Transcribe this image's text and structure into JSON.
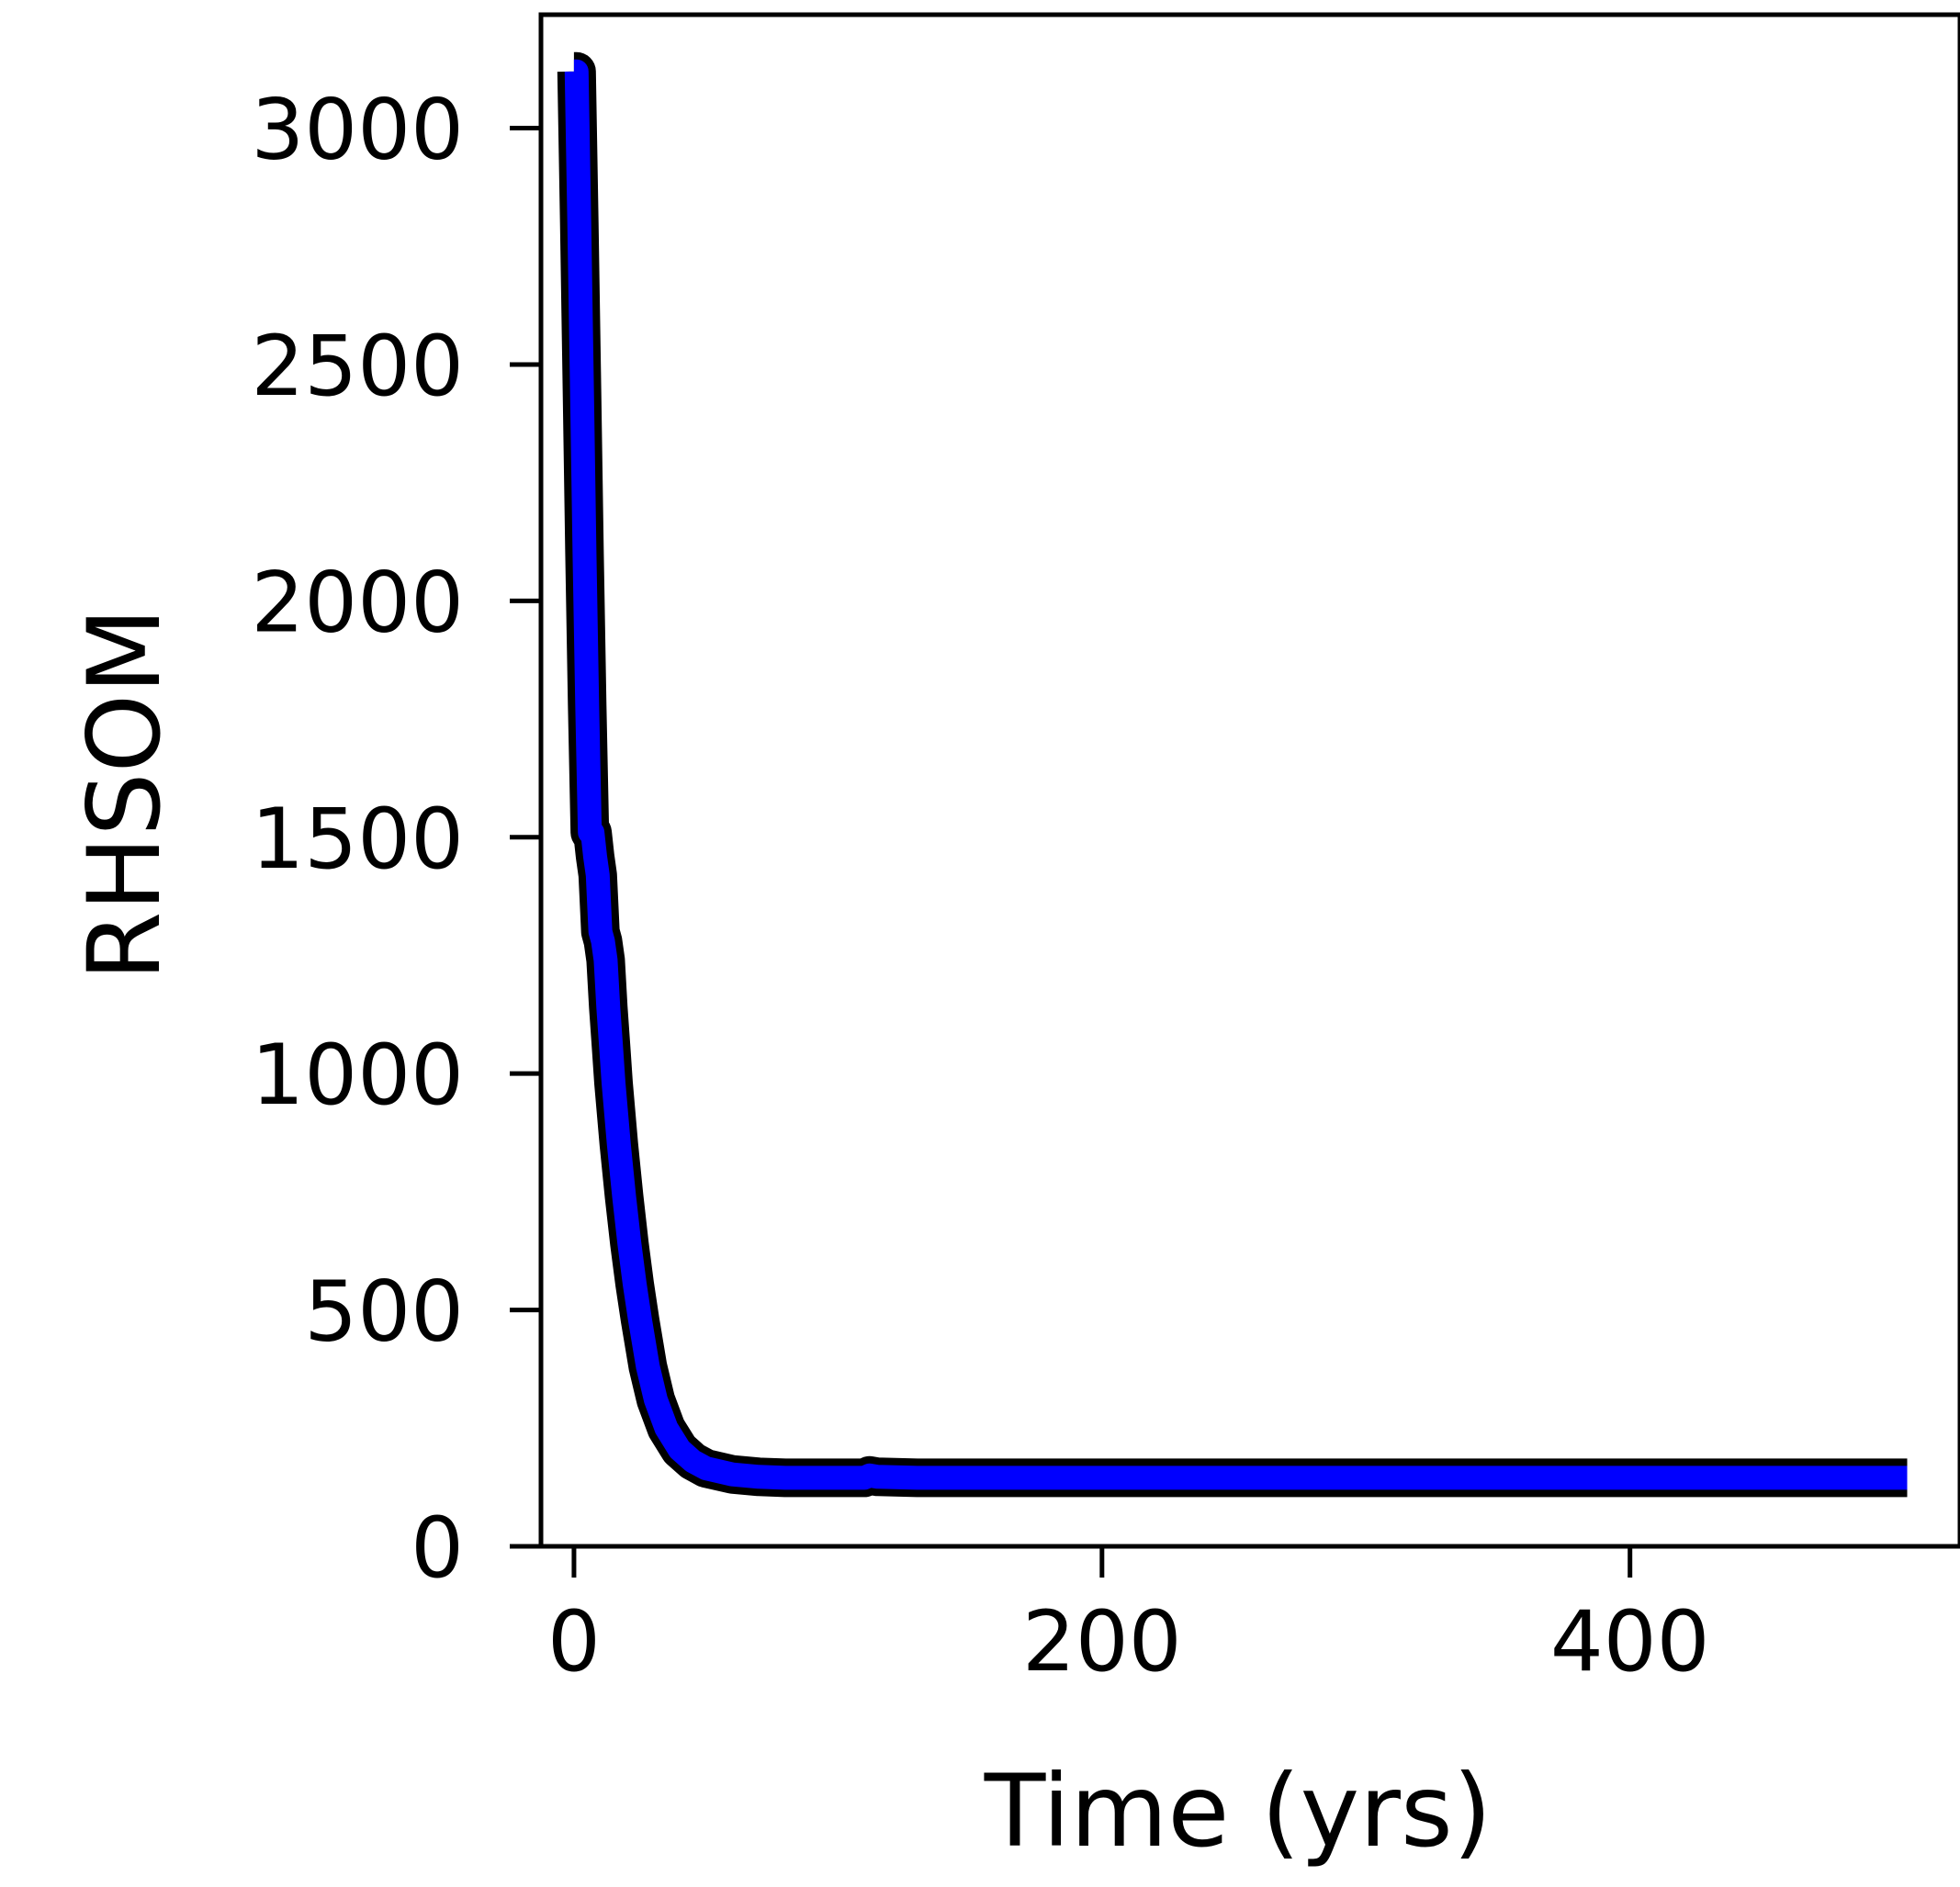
{
  "chart_data": {
    "type": "line",
    "title": "",
    "xlabel": "Time (yrs)",
    "ylabel": "RHSOM",
    "xlim": [
      -12.5,
      525
    ],
    "ylim": [
      0,
      3240
    ],
    "xticks": [
      0,
      200,
      400
    ],
    "xtick_labels": [
      "0",
      "200",
      "400"
    ],
    "yticks": [
      0,
      500,
      1000,
      1500,
      2000,
      2500,
      3000
    ],
    "ytick_labels": [
      "0",
      "500",
      "1000",
      "1500",
      "2000",
      "2500",
      "3000"
    ],
    "grid": false,
    "legend": false,
    "series": [
      {
        "color": "#0000ff",
        "edge_color": "#000000",
        "x": [
          0,
          1,
          2,
          3,
          4,
          5,
          6,
          7,
          8,
          9,
          10,
          11,
          12,
          13,
          14,
          15,
          17,
          19,
          21,
          23,
          25,
          28,
          31,
          35,
          40,
          45,
          50,
          60,
          70,
          80,
          100,
          110,
          112,
          115,
          130,
          150,
          200,
          300,
          400,
          505
        ],
        "y": [
          3120,
          3120,
          2800,
          2450,
          2100,
          1780,
          1510,
          1510,
          1460,
          1420,
          1300,
          1280,
          1240,
          1140,
          1060,
          980,
          850,
          740,
          640,
          555,
          480,
          380,
          310,
          250,
          205,
          180,
          165,
          152,
          147,
          145,
          145,
          145,
          150,
          147,
          145,
          145,
          145,
          145,
          145,
          145
        ]
      }
    ]
  }
}
